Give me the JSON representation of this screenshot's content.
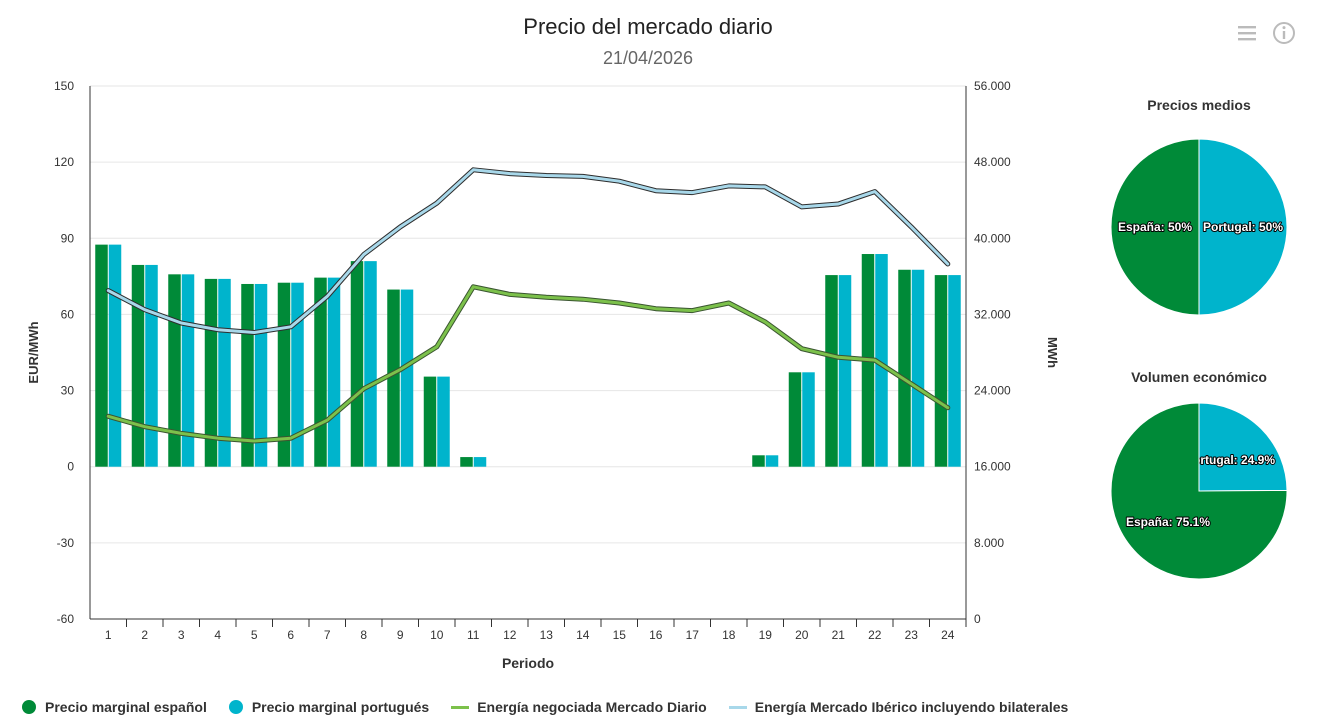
{
  "header": {
    "title": "Precio del mercado diario",
    "subtitle": "21/04/2026",
    "menu_icon": "hamburger-menu-icon",
    "info_icon": "info-circle-icon"
  },
  "colors": {
    "spain": "#008a38",
    "portugal": "#00b4cc",
    "energy_line": "#7cc14b",
    "energy_outline": "#3a5530",
    "iberic_line": "#a8d8ea",
    "iberic_outline": "#2d2d2d",
    "grid": "#e6e6e6"
  },
  "chart_data": [
    {
      "type": "bar",
      "title": "Precio del mercado diario",
      "subtitle": "21/04/2026",
      "xlabel": "Periodo",
      "ylabel": "EUR/MWh",
      "y2label": "MWh",
      "categories": [
        "1",
        "2",
        "3",
        "4",
        "5",
        "6",
        "7",
        "8",
        "9",
        "10",
        "11",
        "12",
        "13",
        "14",
        "15",
        "16",
        "17",
        "18",
        "19",
        "20",
        "21",
        "22",
        "23",
        "24"
      ],
      "ylim": [
        -60,
        150
      ],
      "yticks": [
        -60,
        -30,
        0,
        30,
        60,
        90,
        120,
        150
      ],
      "ytick_labels": [
        "-60",
        "-30",
        "0",
        "30",
        "60",
        "90",
        "120",
        "150"
      ],
      "y2lim": [
        0,
        56000
      ],
      "y2ticks": [
        0,
        8000,
        16000,
        24000,
        32000,
        40000,
        48000,
        56000
      ],
      "y2tick_labels": [
        "0",
        "8.000",
        "16.000",
        "24.000",
        "32.000",
        "40.000",
        "48.000",
        "56.000"
      ],
      "series": [
        {
          "name": "Precio marginal español",
          "type": "bar",
          "axis": "left",
          "values": [
            87.5,
            79.5,
            75.8,
            74.0,
            72.0,
            72.5,
            74.5,
            81.0,
            69.8,
            35.5,
            3.8,
            0,
            0,
            0,
            0,
            0,
            0,
            0,
            4.5,
            37.2,
            75.5,
            83.8,
            77.6,
            75.5
          ]
        },
        {
          "name": "Precio marginal portugués",
          "type": "bar",
          "axis": "left",
          "values": [
            87.5,
            79.5,
            75.8,
            74.0,
            72.0,
            72.5,
            74.5,
            81.0,
            69.8,
            35.5,
            3.8,
            0,
            0,
            0,
            0,
            0,
            0,
            0,
            4.5,
            37.2,
            75.5,
            83.8,
            77.6,
            75.5
          ]
        },
        {
          "name": "Energía negociada Mercado Diario",
          "type": "line",
          "axis": "right",
          "values": [
            21300,
            20200,
            19500,
            19000,
            18700,
            19000,
            20900,
            24200,
            26200,
            28600,
            34900,
            34100,
            33800,
            33600,
            33200,
            32600,
            32400,
            33200,
            31200,
            28400,
            27500,
            27200,
            24700,
            22200
          ]
        },
        {
          "name": "Energía Mercado Ibérico incluyendo bilaterales",
          "type": "line",
          "axis": "right",
          "values": [
            34500,
            32500,
            31100,
            30400,
            30100,
            30700,
            33900,
            38300,
            41200,
            43700,
            47200,
            46800,
            46600,
            46500,
            46000,
            45000,
            44800,
            45500,
            45400,
            43300,
            43600,
            44900,
            41200,
            37300
          ]
        }
      ],
      "legend": "bottom"
    },
    {
      "type": "pie",
      "title": "Precios medios",
      "slices": [
        {
          "name": "Portugal",
          "value": 50,
          "label": "Portugal: 50%"
        },
        {
          "name": "España",
          "value": 50,
          "label": "España: 50%"
        }
      ]
    },
    {
      "type": "pie",
      "title": "Volumen económico",
      "slices": [
        {
          "name": "Portugal",
          "value": 24.9,
          "label": "Portugal: 24.9%"
        },
        {
          "name": "España",
          "value": 75.1,
          "label": "España: 75.1%"
        }
      ]
    }
  ]
}
